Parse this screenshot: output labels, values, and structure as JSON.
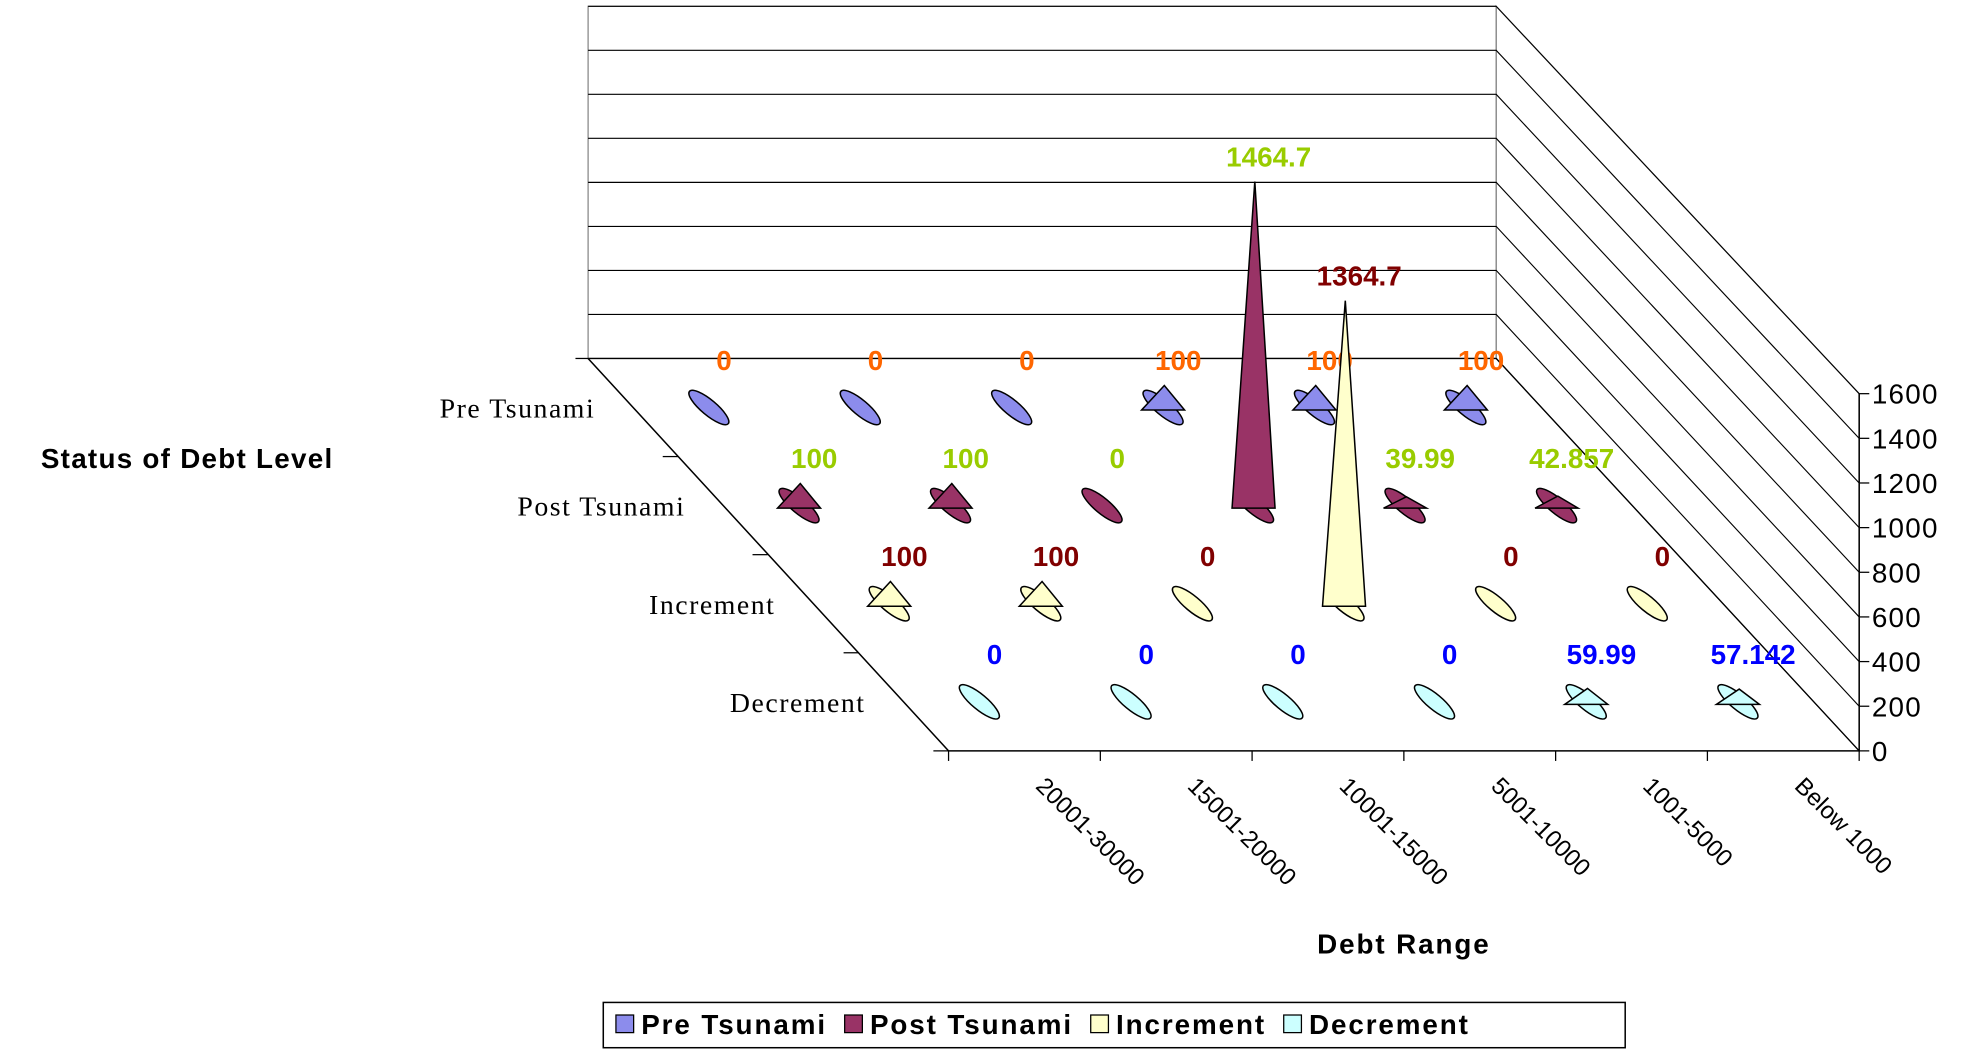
{
  "chart_data": {
    "type": "cone3d",
    "y_axis_label": "Status of Debt Level",
    "x_axis_label": "Debt Range",
    "categories": [
      "20001-30000",
      "15001-20000",
      "10001-15000",
      "5001-10000",
      "1001-5000",
      "Below 1000"
    ],
    "series": [
      {
        "name": "Pre Tsunami",
        "color": "#8c8cec",
        "label_color": "#ff6600",
        "values": [
          0,
          0,
          0,
          100,
          100,
          100
        ]
      },
      {
        "name": "Post Tsunami",
        "color": "#993366",
        "label_color": "#99cc00",
        "values": [
          100,
          100,
          0,
          1464.7,
          39.99,
          42.857
        ]
      },
      {
        "name": "Increment",
        "color": "#ffffcc",
        "label_color": "#800000",
        "values": [
          100,
          100,
          0,
          1364.7,
          0,
          0
        ]
      },
      {
        "name": "Decrement",
        "color": "#ccffff",
        "label_color": "#0000ff",
        "values": [
          0,
          0,
          0,
          0,
          59.99,
          57.142
        ]
      }
    ],
    "zlim": [
      0,
      1600
    ],
    "zticks": [
      0,
      200,
      400,
      600,
      800,
      1000,
      1200,
      1400,
      1600
    ],
    "grid": true,
    "legend": "bottom"
  }
}
